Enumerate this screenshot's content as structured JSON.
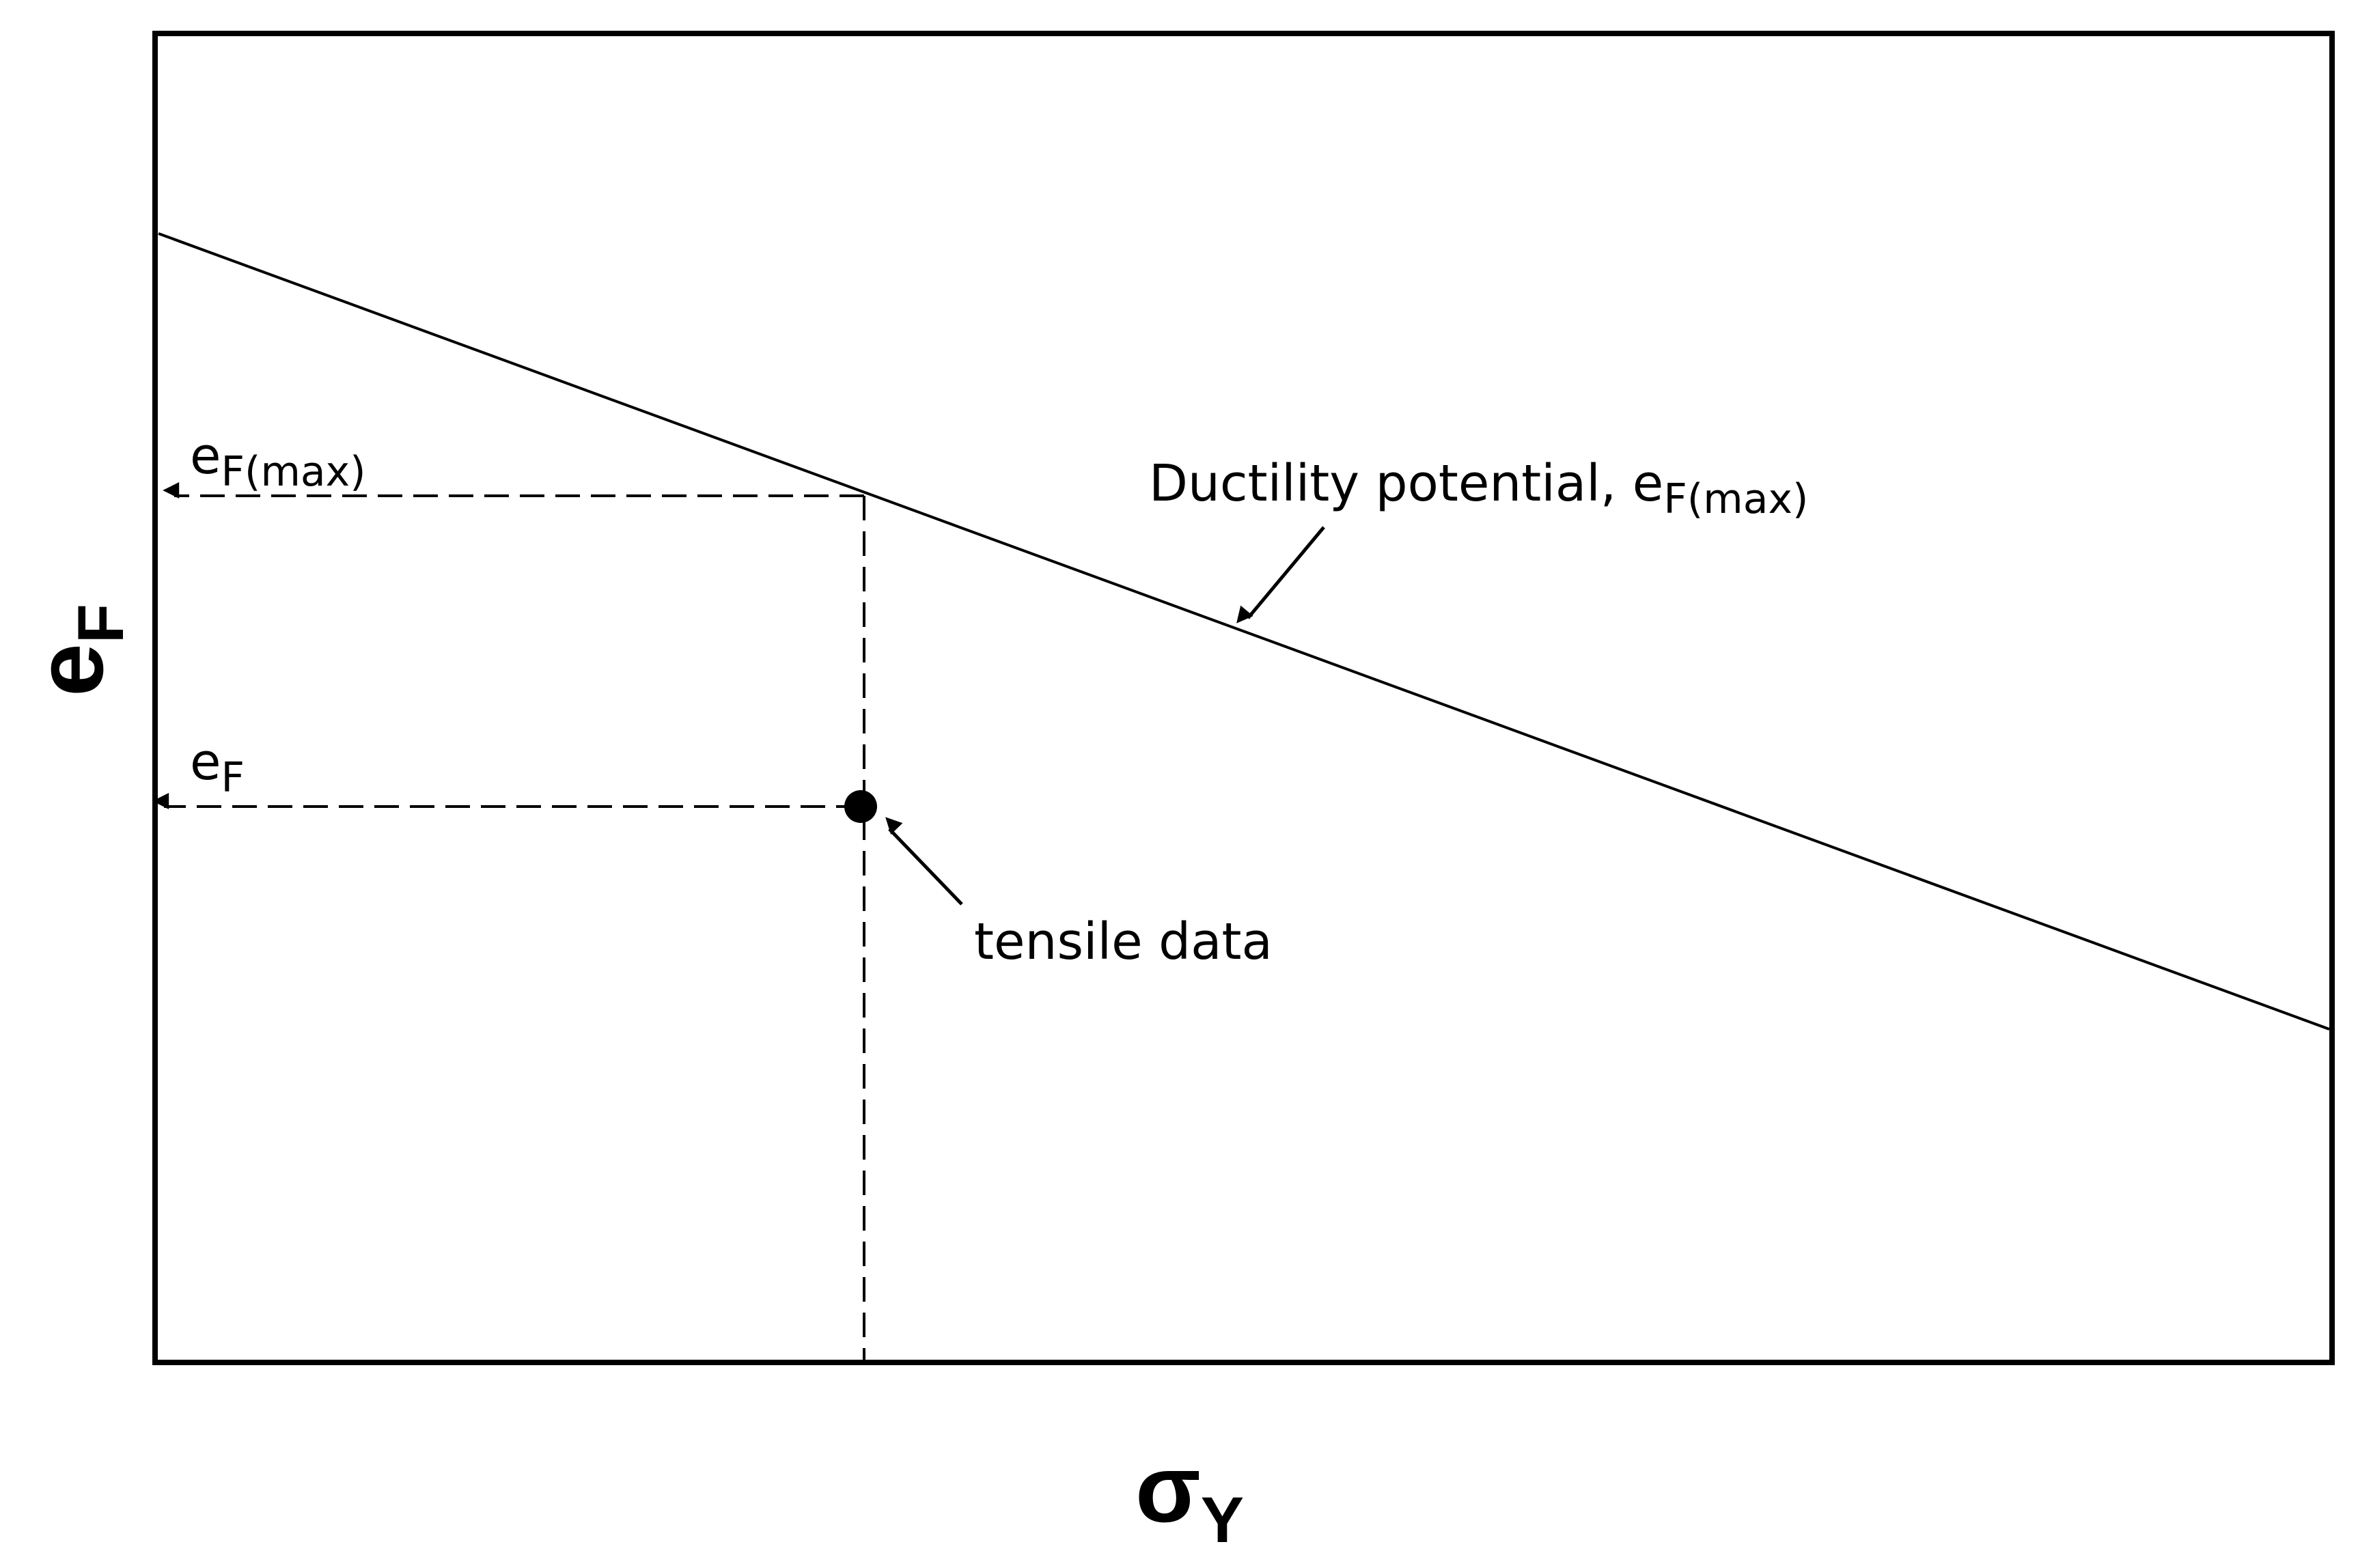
{
  "axes": {
    "y_label": {
      "base": "e",
      "subscript": "F"
    },
    "x_label": {
      "base": "σ",
      "subscript": "Y"
    }
  },
  "annotations": [
    {
      "base": "e",
      "subscript": "F(max)"
    },
    {
      "base": "Ductility potential, e",
      "subscript": "F(max)"
    },
    {
      "base": "e",
      "subscript": "F"
    },
    {
      "text": "tensile data"
    }
  ]
}
